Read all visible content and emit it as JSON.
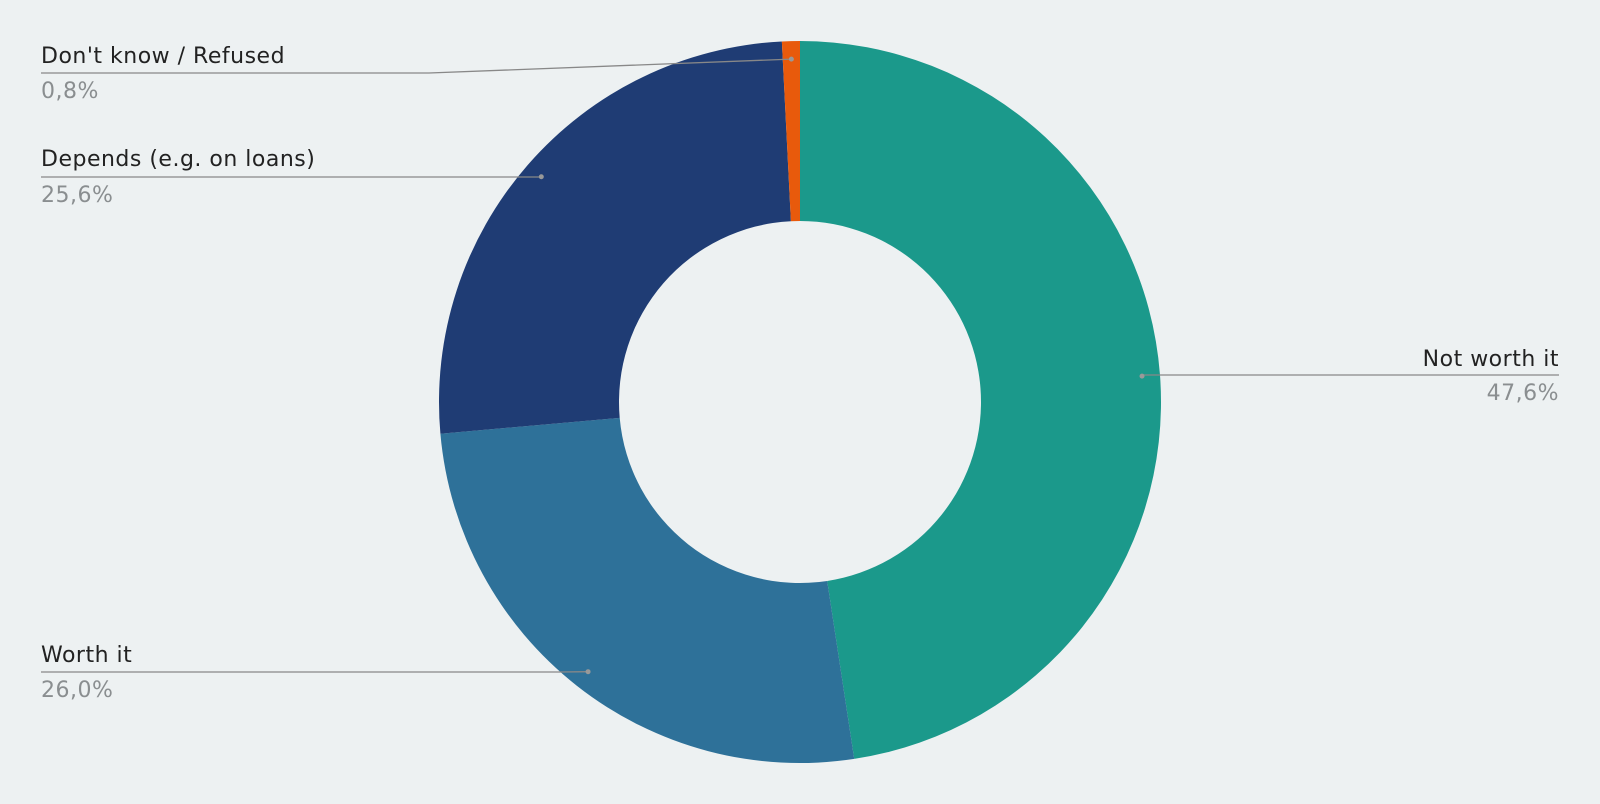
{
  "chart_data": {
    "type": "donut",
    "categories": [
      "Not worth it",
      "Worth it",
      "Depends (e.g. on loans)",
      "Don't know / Refused"
    ],
    "values": [
      47.6,
      26.0,
      25.6,
      0.8
    ],
    "value_labels": [
      "47,6%",
      "26,0%",
      "25,6%",
      "0,8%"
    ],
    "colors": [
      "#1b998b",
      "#2e7199",
      "#1f3c74",
      "#e85a0c"
    ]
  }
}
